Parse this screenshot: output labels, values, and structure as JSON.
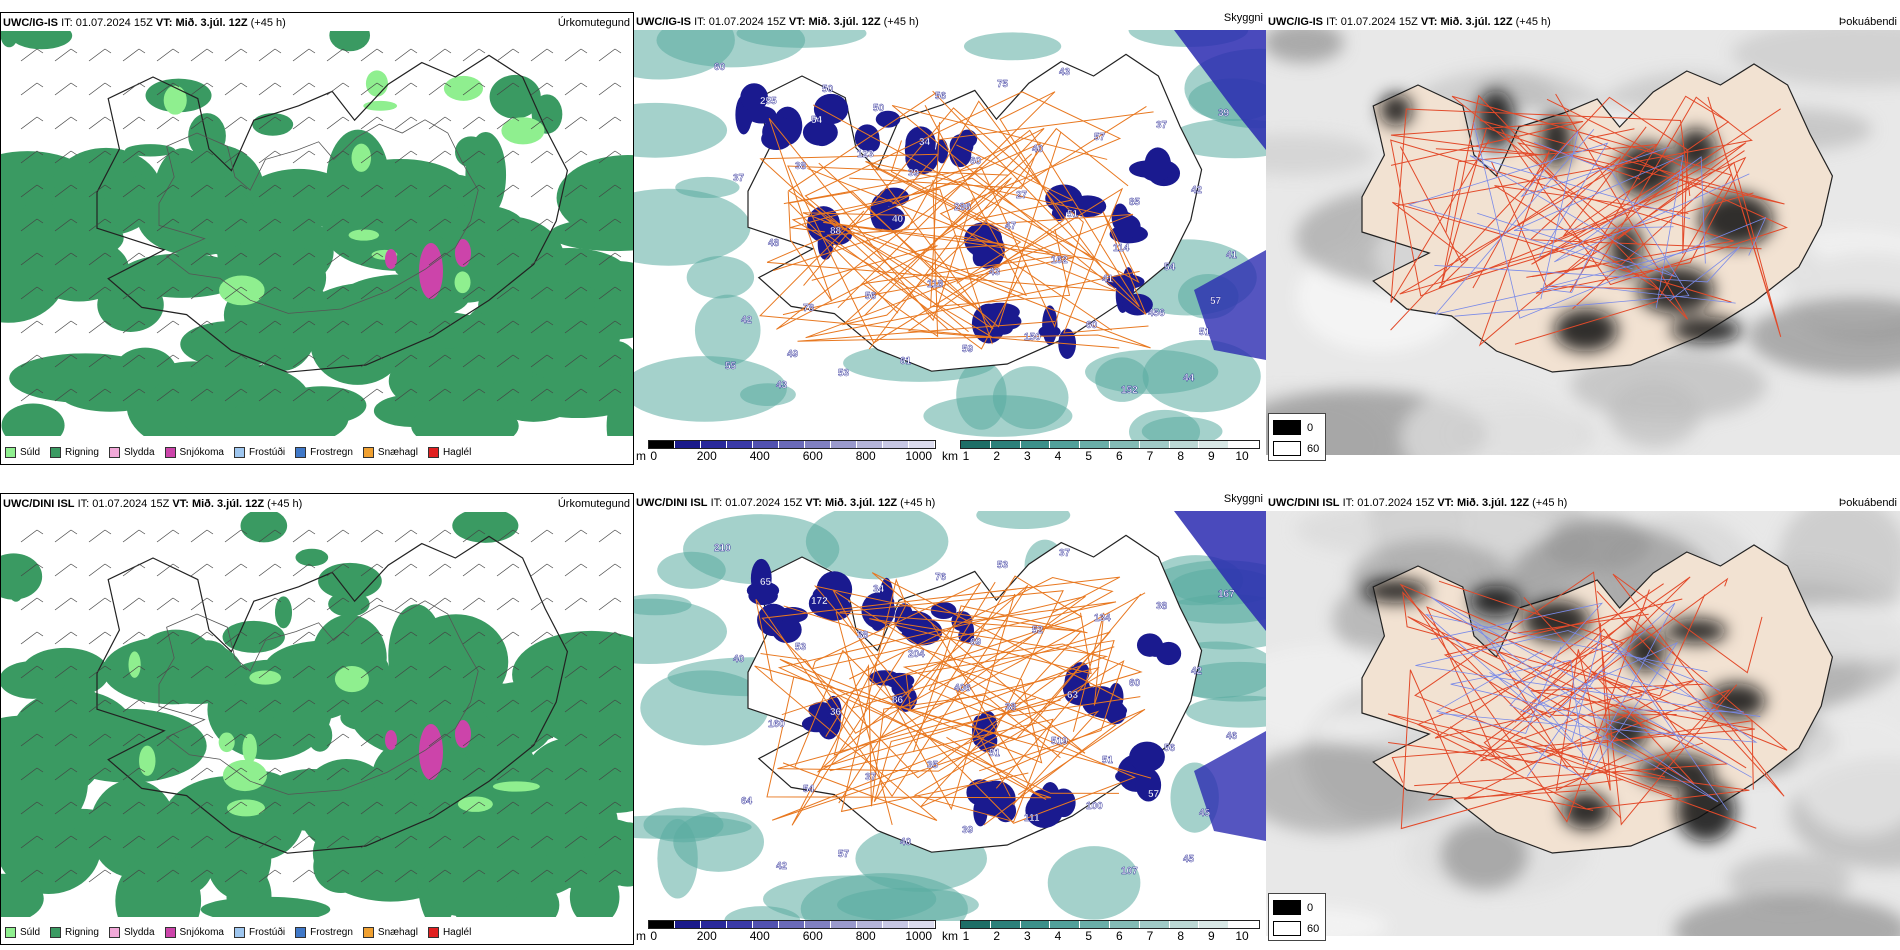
{
  "rows": [
    {
      "model": "UWC/IG-IS",
      "panels": {
        "precip": {
          "title_model": "UWC/IG-IS",
          "it_label": "IT:",
          "it_value": "01.07.2024 15Z",
          "vt_label": "VT:",
          "vt_value": "Mið. 3.júl. 12Z",
          "lead": "(+45 h)",
          "right_label": "Úrkomutegund"
        },
        "cloud": {
          "title_model": "UWC/IG-IS",
          "it_label": "IT:",
          "it_value": "01.07.2024 15Z",
          "vt_label": "VT:",
          "vt_value": "Mið. 3.júl. 12Z",
          "lead": "(+45 h)",
          "right_label": "Skyggni"
        },
        "fog": {
          "title_model": "UWC/IG-IS",
          "it_label": "IT:",
          "it_value": "01.07.2024 15Z",
          "vt_label": "VT:",
          "vt_value": "Mið. 3.júl. 12Z",
          "lead": "(+45 h)",
          "right_label": "Þokuábendi"
        }
      },
      "cloud_labels": [
        "60",
        "54",
        "39",
        "47",
        "41",
        "51",
        "43",
        "50",
        "60",
        "51",
        "54",
        "42",
        "53",
        "56",
        "40",
        "85",
        "41",
        "78",
        "61",
        "75",
        "57",
        "42",
        "48",
        "56",
        "59",
        "43",
        "37",
        "37",
        "88",
        "118",
        "150",
        "152",
        "39",
        "38",
        "40",
        "43",
        "60",
        "44",
        "255",
        "123",
        "286",
        "162",
        "456",
        "55",
        "50",
        "34",
        "27",
        "114",
        "57",
        "49"
      ]
    },
    {
      "model": "UWC/DINI ISL",
      "panels": {
        "precip": {
          "title_model": "UWC/DINI ISL",
          "it_label": "IT:",
          "it_value": "01.07.2024 15Z",
          "vt_label": "VT:",
          "vt_value": "Mið. 3.júl. 12Z",
          "lead": "(+45 h)",
          "right_label": "Úrkomutegund"
        },
        "cloud": {
          "title_model": "UWC/DINI ISL",
          "it_label": "IT:",
          "it_value": "01.07.2024 15Z",
          "vt_label": "VT:",
          "vt_value": "Mið. 3.júl. 12Z",
          "lead": "(+45 h)",
          "right_label": "Skyggni"
        },
        "fog": {
          "title_model": "UWC/DINI ISL",
          "it_label": "IT:",
          "it_value": "01.07.2024 15Z",
          "vt_label": "VT:",
          "vt_value": "Mið. 3.júl. 12Z",
          "lead": "(+45 h)",
          "right_label": "Þokuábendi"
        }
      },
      "cloud_labels": [
        "210",
        "172",
        "204",
        "38",
        "51",
        "45",
        "42",
        "34",
        "69",
        "63",
        "56",
        "64",
        "57",
        "76",
        "52",
        "60",
        "46",
        "54",
        "40",
        "53",
        "134",
        "42",
        "160",
        "37",
        "39",
        "37",
        "38",
        "40",
        "36",
        "35",
        "111",
        "107",
        "167",
        "53",
        "86",
        "51",
        "100",
        "45",
        "65",
        "38",
        "406",
        "519",
        "57"
      ]
    }
  ],
  "precip_legend": [
    {
      "label": "Súld",
      "color": "#8fef8f"
    },
    {
      "label": "Rigning",
      "color": "#3a9a62"
    },
    {
      "label": "Slydda",
      "color": "#f2a8d8"
    },
    {
      "label": "Snjókoma",
      "color": "#cc44aa"
    },
    {
      "label": "Frostúði",
      "color": "#9ec6ef"
    },
    {
      "label": "Frostregn",
      "color": "#3f78c8"
    },
    {
      "label": "Snæhagl",
      "color": "#f0a030"
    },
    {
      "label": "Haglél",
      "color": "#e02020"
    }
  ],
  "height_scale": {
    "unit": "m",
    "ticks": [
      "0",
      "200",
      "400",
      "600",
      "800",
      "1000"
    ],
    "colors": [
      "#000000",
      "#1a1a8a",
      "#2a2a9a",
      "#3a3aa6",
      "#5252b0",
      "#6a6ab8",
      "#8080c0",
      "#9a9acc",
      "#b4b4d8",
      "#c8c8e4",
      "#dcdcee"
    ]
  },
  "visibility_scale": {
    "unit": "km",
    "ticks": [
      "1",
      "2",
      "3",
      "4",
      "5",
      "6",
      "7",
      "8",
      "9",
      "10"
    ],
    "colors": [
      "#1e6e66",
      "#2d807a",
      "#3d908a",
      "#52a09a",
      "#6aaea8",
      "#84bcb6",
      "#a0cac6",
      "#bcd8d4",
      "#d8e8e6",
      "#ffffff"
    ]
  },
  "fog_legend": [
    {
      "value": "0",
      "color": "#000000"
    },
    {
      "value": "60",
      "color": "#ffffff"
    }
  ],
  "colors": {
    "rain_green": "#3a9a62",
    "drizzle_green": "#8fef8f",
    "snow_magenta": "#cc44aa",
    "mountain_blue": "#1a1a8f",
    "sea_teal": "#5aaba0",
    "road_orange": "#e87820",
    "land_tan": "#f2e2d2"
  }
}
